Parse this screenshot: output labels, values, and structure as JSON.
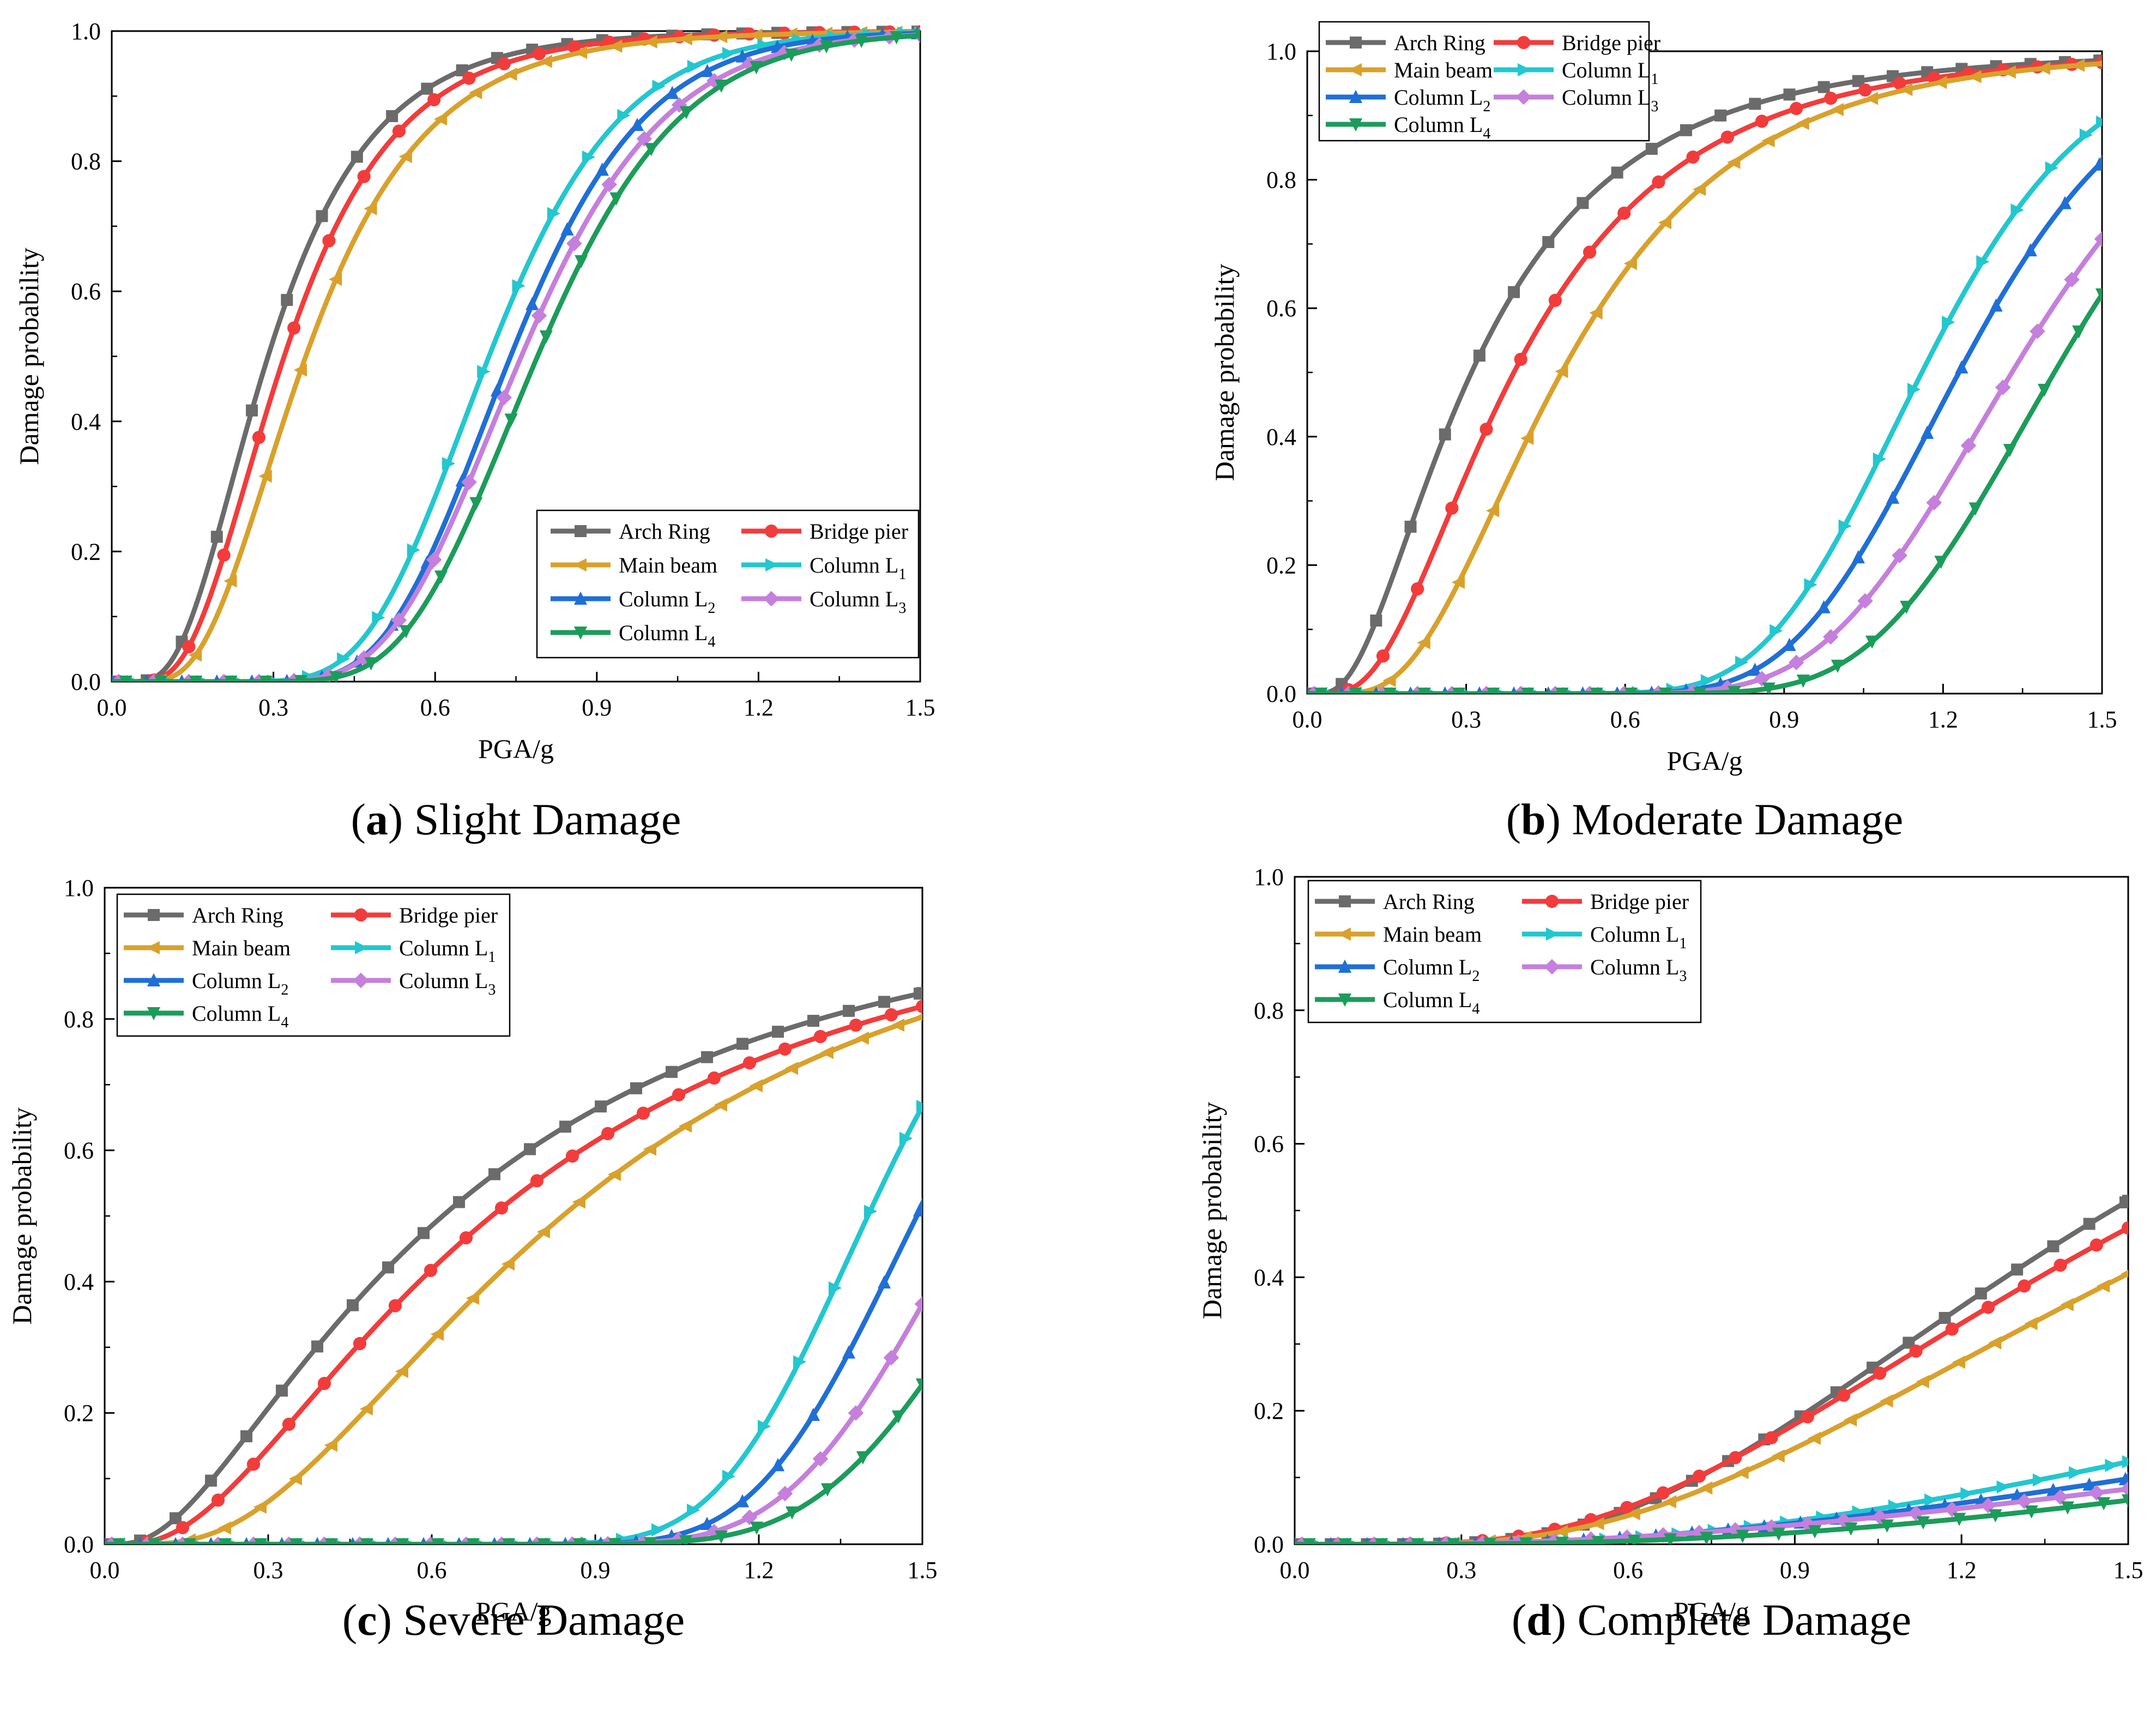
{
  "figure": {
    "legend_entries": {
      "arch": "Arch Ring",
      "pier": "Bridge pier",
      "beam": "Main beam",
      "L1": "Column L",
      "L2": "Column L",
      "L3": "Column L",
      "L4": "Column L"
    },
    "legend_subscripts": {
      "L1": "1",
      "L2": "2",
      "L3": "3",
      "L4": "4"
    },
    "colors": {
      "arch": "#6b6b6b",
      "pier": "#f23c3c",
      "beam": "#d9a12b",
      "L1": "#22c7cf",
      "L2": "#1f6fd6",
      "L3": "#c57fdc",
      "L4": "#1c9c5a"
    },
    "marker_icons": {
      "arch": "square-marker-icon",
      "pier": "circle-marker-icon",
      "beam": "left-triangle-marker-icon",
      "L1": "right-triangle-marker-icon",
      "L2": "up-triangle-marker-icon",
      "L3": "diamond-marker-icon",
      "L4": "down-triangle-marker-icon"
    },
    "xlabel": "PGA/g",
    "ylabel": "Damage probability",
    "x_ticks": [
      "0.0",
      "0.3",
      "0.6",
      "0.9",
      "1.2",
      "1.5"
    ],
    "y_ticks": [
      "0.0",
      "0.2",
      "0.4",
      "0.6",
      "0.8",
      "1.0"
    ]
  },
  "chart_data": [
    {
      "type": "line",
      "id": "a",
      "caption_letter": "a",
      "caption_text": " Slight Damage",
      "xlabel": "PGA/g",
      "ylabel": "Damage probability",
      "xlim": [
        0,
        1.5
      ],
      "ylim": [
        0,
        1.0
      ],
      "legend": "bottom-right",
      "series": [
        {
          "key": "arch",
          "name": "Arch Ring",
          "median": 0.29,
          "beta": 0.52
        },
        {
          "key": "pier",
          "name": "Bridge pier",
          "median": 0.32,
          "beta": 0.5
        },
        {
          "key": "beam",
          "name": "Main beam",
          "median": 0.36,
          "beta": 0.48
        },
        {
          "key": "L1",
          "name": "Column L1",
          "median": 0.7,
          "beta": 0.27
        },
        {
          "key": "L2",
          "name": "Column L2",
          "median": 0.74,
          "beta": 0.26
        },
        {
          "key": "L3",
          "name": "Column L3",
          "median": 0.76,
          "beta": 0.27
        },
        {
          "key": "L4",
          "name": "Column L4",
          "median": 0.79,
          "beta": 0.26
        }
      ]
    },
    {
      "type": "line",
      "id": "b",
      "caption_letter": "b",
      "caption_text": " Moderate Damage",
      "xlabel": "PGA/g",
      "ylabel": "Damage probability",
      "xlim": [
        0,
        1.5
      ],
      "ylim": [
        0,
        1.0
      ],
      "legend": "top-left",
      "series": [
        {
          "key": "arch",
          "name": "Arch Ring",
          "median": 0.31,
          "beta": 0.72
        },
        {
          "key": "pier",
          "name": "Bridge pier",
          "median": 0.39,
          "beta": 0.64
        },
        {
          "key": "beam",
          "name": "Main beam",
          "median": 0.48,
          "beta": 0.55
        },
        {
          "key": "L1",
          "name": "Column L1",
          "median": 1.16,
          "beta": 0.21
        },
        {
          "key": "L2",
          "name": "Column L2",
          "median": 1.23,
          "beta": 0.21
        },
        {
          "key": "L3",
          "name": "Column L3",
          "median": 1.33,
          "beta": 0.22
        },
        {
          "key": "L4",
          "name": "Column L4",
          "median": 1.41,
          "beta": 0.2
        }
      ]
    },
    {
      "type": "line",
      "id": "c",
      "caption_letter": "c",
      "caption_text": " Severe Damage",
      "xlabel": "PGA/g",
      "ylabel": "Damage probability",
      "xlim": [
        0,
        1.5
      ],
      "ylim": [
        0,
        1.0
      ],
      "legend": "top-left",
      "series": [
        {
          "key": "arch",
          "name": "Arch Ring",
          "median": 0.62,
          "beta": 0.89
        },
        {
          "key": "pier",
          "name": "Bridge pier",
          "median": 0.71,
          "beta": 0.82
        },
        {
          "key": "beam",
          "name": "Main beam",
          "median": 0.84,
          "beta": 0.68
        },
        {
          "key": "L1",
          "name": "Column L1",
          "median": 1.4,
          "beta": 0.16
        },
        {
          "key": "L2",
          "name": "Column L2",
          "median": 1.49,
          "beta": 0.16
        },
        {
          "key": "L3",
          "name": "Column L3",
          "median": 1.59,
          "beta": 0.17
        },
        {
          "key": "L4",
          "name": "Column L4",
          "median": 1.7,
          "beta": 0.18
        }
      ]
    },
    {
      "type": "line",
      "id": "d",
      "caption_letter": "d",
      "caption_text": " Complete Damage",
      "xlabel": "PGA/g",
      "ylabel": "Damage probability",
      "xlim": [
        0,
        1.5
      ],
      "ylim": [
        0,
        1.0
      ],
      "legend": "top-left",
      "series": [
        {
          "key": "arch",
          "name": "Arch Ring",
          "median": 1.47,
          "beta": 0.55
        },
        {
          "key": "pier",
          "name": "Bridge pier",
          "median": 1.56,
          "beta": 0.6
        },
        {
          "key": "beam",
          "name": "Main beam",
          "median": 1.74,
          "beta": 0.62
        },
        {
          "key": "L1",
          "name": "Column L1",
          "median": 3.7,
          "beta": 0.78
        },
        {
          "key": "L2",
          "name": "Column L2",
          "median": 4.8,
          "beta": 0.9
        },
        {
          "key": "L3",
          "name": "Column L3",
          "median": 6.0,
          "beta": 1.0
        },
        {
          "key": "L4",
          "name": "Column L4",
          "median": 5.4,
          "beta": 0.85
        }
      ]
    }
  ]
}
